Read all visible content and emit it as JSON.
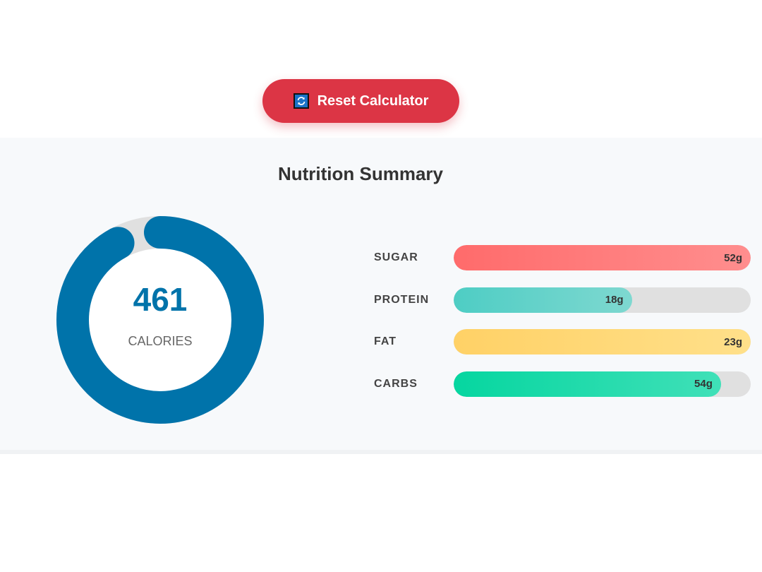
{
  "reset_button": {
    "label": "Reset Calculator",
    "icon": "refresh-icon"
  },
  "summary": {
    "title": "Nutrition Summary",
    "calories": {
      "value": "461",
      "label": "CALORIES",
      "ring_fill_fraction": 0.92,
      "ring_color": "#0073aa"
    },
    "nutrients": [
      {
        "name": "SUGAR",
        "value": "52g",
        "fill_percent": 100,
        "colors": [
          "#ff6b6b",
          "#ff8e8e"
        ]
      },
      {
        "name": "PROTEIN",
        "value": "18g",
        "fill_percent": 60,
        "colors": [
          "#4ecdc4",
          "#7ed8d0"
        ]
      },
      {
        "name": "FAT",
        "value": "23g",
        "fill_percent": 100,
        "colors": [
          "#ffd166",
          "#ffe08a"
        ]
      },
      {
        "name": "CARBS",
        "value": "54g",
        "fill_percent": 90,
        "colors": [
          "#06d6a0",
          "#40e0b8"
        ]
      }
    ]
  }
}
